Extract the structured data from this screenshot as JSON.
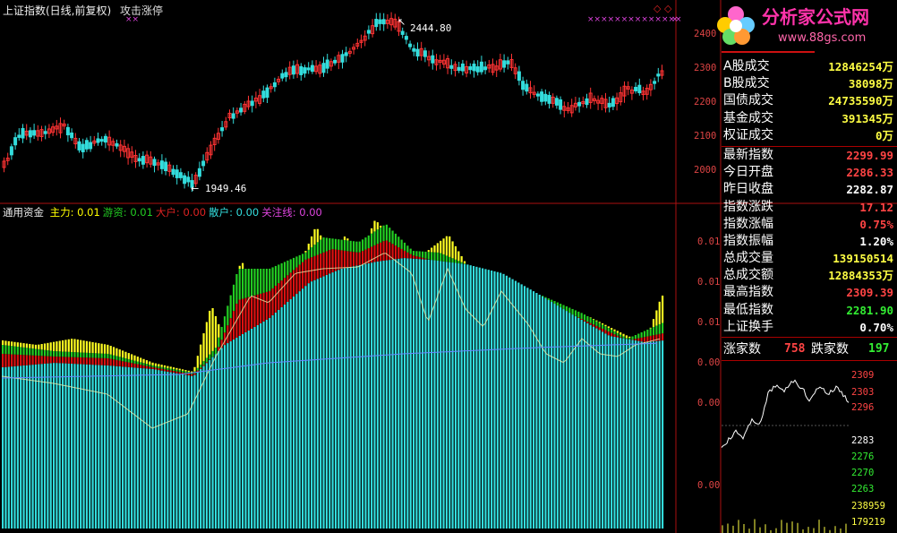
{
  "window": {
    "title": "上证指数(日线,前复权)",
    "indicator": "攻击涨停"
  },
  "price_axis": [
    "2400",
    "2300",
    "2200",
    "2100",
    "2000"
  ],
  "annotations": {
    "high": "2444.80",
    "low": "1949.46"
  },
  "indicator_legend": {
    "name": "通用资金",
    "items": [
      {
        "label": "主力:",
        "value": "0.01",
        "color": "#ffff00"
      },
      {
        "label": "游资:",
        "value": "0.01",
        "color": "#22cc22"
      },
      {
        "label": "大户:",
        "value": "0.00",
        "color": "#dd2222"
      },
      {
        "label": "散户:",
        "value": "0.00",
        "color": "#33dddd"
      },
      {
        "label": "关注线:",
        "value": "0.00",
        "color": "#dd44dd"
      }
    ]
  },
  "indicator_axis": [
    "0.01",
    "0.01",
    "0.01",
    "0.00",
    "0.00",
    "0.00"
  ],
  "logo": {
    "text": "分析家公式网",
    "url": "www.88gs.com"
  },
  "stats": [
    {
      "label": "A股成交",
      "value": "12846254万",
      "color": "#ffff44"
    },
    {
      "label": "B股成交",
      "value": "38098万",
      "color": "#ffff44"
    },
    {
      "label": "国债成交",
      "value": "24735590万",
      "color": "#ffff44"
    },
    {
      "label": "基金成交",
      "value": "391345万",
      "color": "#ffff44"
    },
    {
      "label": "权证成交",
      "value": "0万",
      "color": "#ffff44"
    },
    {
      "label": "最新指数",
      "value": "2299.99",
      "color": "#ff4444"
    },
    {
      "label": "今日开盘",
      "value": "2286.33",
      "color": "#ff4444"
    },
    {
      "label": "昨日收盘",
      "value": "2282.87",
      "color": "#ffffff"
    },
    {
      "label": "指数涨跌",
      "value": "17.12",
      "color": "#ff4444"
    },
    {
      "label": "指数涨幅",
      "value": "0.75%",
      "color": "#ff4444"
    },
    {
      "label": "指数振幅",
      "value": "1.20%",
      "color": "#ffffff"
    },
    {
      "label": "总成交量",
      "value": "139150514",
      "color": "#ffff44"
    },
    {
      "label": "总成交额",
      "value": "12884353万",
      "color": "#ffff44"
    },
    {
      "label": "最高指数",
      "value": "2309.39",
      "color": "#ff4444"
    },
    {
      "label": "最低指数",
      "value": "2281.90",
      "color": "#33ee33"
    },
    {
      "label": "上证换手",
      "value": "0.70%",
      "color": "#ffffff"
    }
  ],
  "advance_decline": {
    "up_label": "涨家数",
    "up_value": "758",
    "down_label": "跌家数",
    "down_value": "197"
  },
  "mini_chart_axis": [
    {
      "text": "2309",
      "color": "#ff4444"
    },
    {
      "text": "2303",
      "color": "#ff4444"
    },
    {
      "text": "2296",
      "color": "#ff4444"
    },
    {
      "text": "2283",
      "color": "#ffffff"
    },
    {
      "text": "2276",
      "color": "#33ee33"
    },
    {
      "text": "2270",
      "color": "#33ee33"
    },
    {
      "text": "2263",
      "color": "#33ee33"
    },
    {
      "text": "238959",
      "color": "#ffff44"
    },
    {
      "text": "179219",
      "color": "#ffff44"
    }
  ]
}
